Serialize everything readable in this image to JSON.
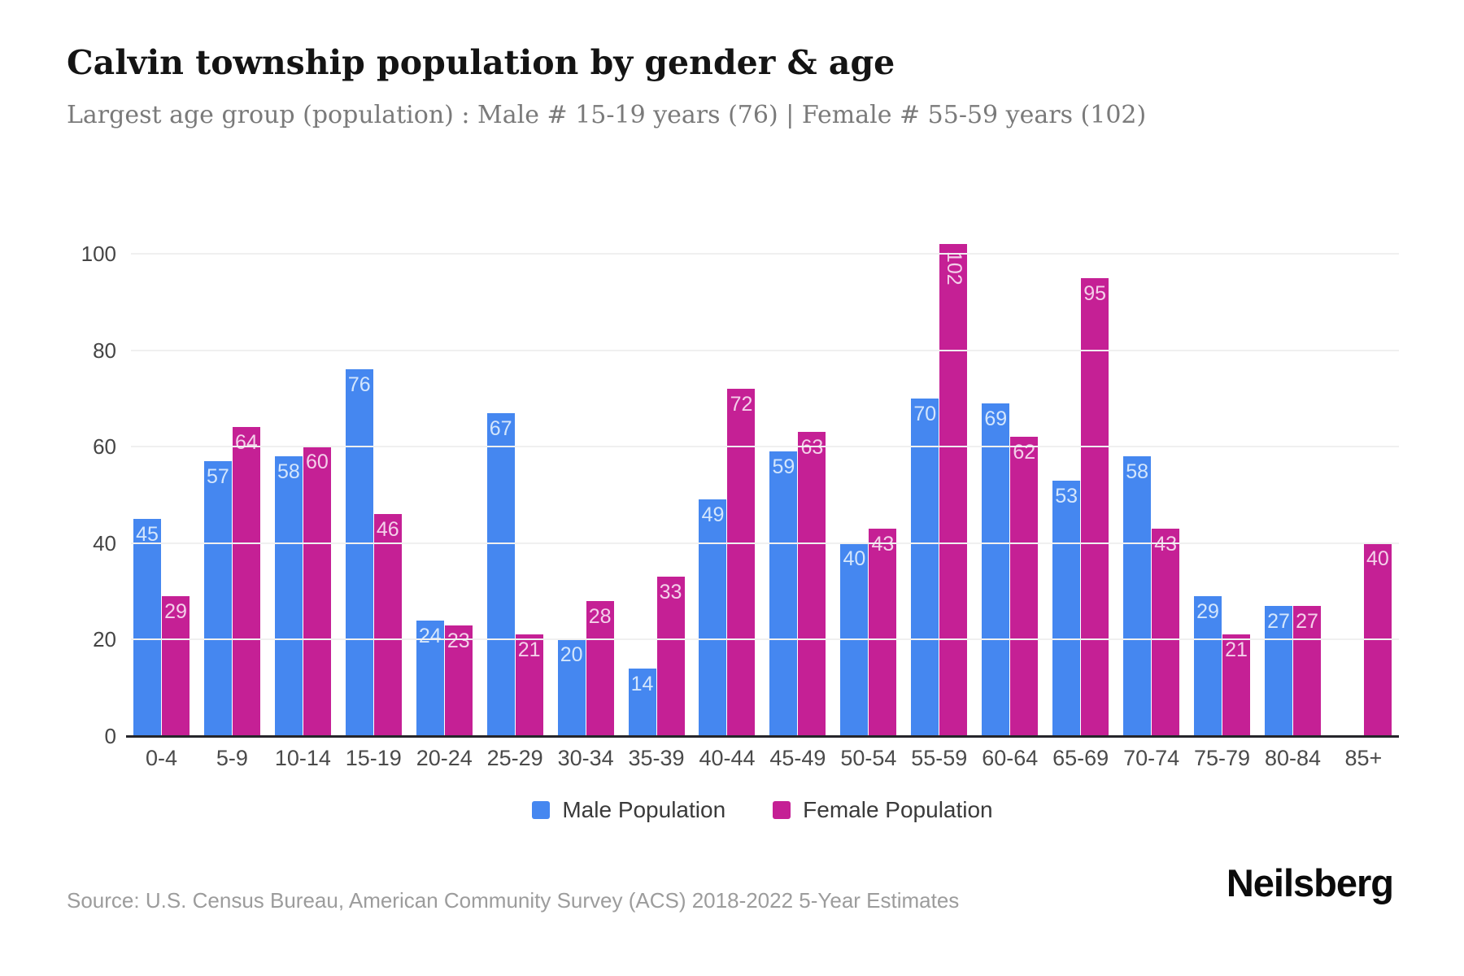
{
  "header": {
    "title": "Calvin township population by gender & age",
    "subtitle": "Largest age group (population) : Male # 15-19 years (76) | Female # 55-59 years (102)"
  },
  "chart_data": {
    "type": "bar",
    "categories": [
      "0-4",
      "5-9",
      "10-14",
      "15-19",
      "20-24",
      "25-29",
      "30-34",
      "35-39",
      "40-44",
      "45-49",
      "50-54",
      "55-59",
      "60-64",
      "65-69",
      "70-74",
      "75-79",
      "80-84",
      "85+"
    ],
    "series": [
      {
        "name": "Male Population",
        "color": "#4587f0",
        "value_label_color": "#d4e6fc",
        "values": [
          45,
          57,
          58,
          76,
          24,
          67,
          20,
          14,
          49,
          59,
          40,
          70,
          69,
          53,
          58,
          29,
          27,
          0
        ]
      },
      {
        "name": "Female Population",
        "color": "#c52095",
        "value_label_color": "#f4d0ea",
        "values": [
          29,
          64,
          60,
          46,
          23,
          21,
          28,
          33,
          72,
          63,
          43,
          102,
          62,
          95,
          43,
          21,
          27,
          40
        ]
      }
    ],
    "ylim": [
      0,
      102
    ],
    "yticks": [
      0,
      20,
      40,
      60,
      80,
      100
    ],
    "grid": "horizontal",
    "legend_position": "bottom",
    "value_labels": "inside-top",
    "colors": {
      "gridline": "#f0f0f0",
      "axis_line": "#26262b",
      "tick_text": "#454545"
    }
  },
  "footer": {
    "source": "Source: U.S. Census Bureau, American Community Survey (ACS) 2018-2022 5-Year Estimates",
    "brand": "Neilsberg"
  }
}
